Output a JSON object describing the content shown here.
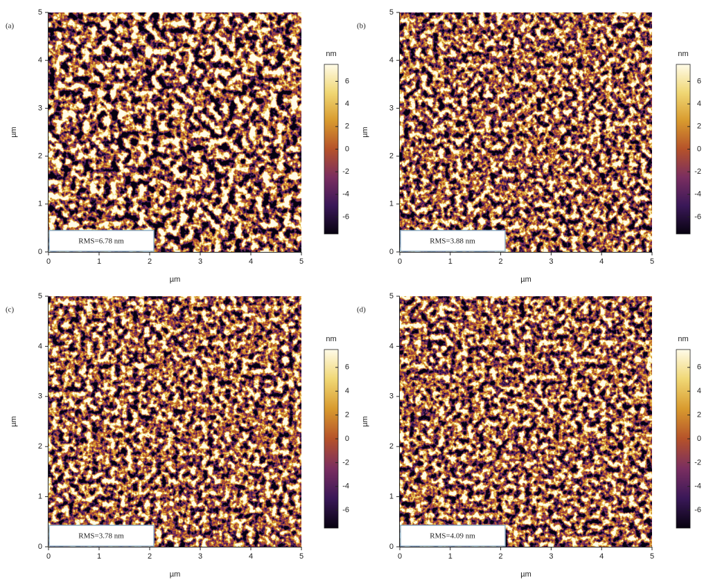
{
  "chart_data": [
    {
      "type": "image",
      "panel_label": "(a)",
      "annotation": "RMS=6.78 nm",
      "xlabel": "µm",
      "ylabel": "µm",
      "colorbar_label": "nm",
      "xlim": [
        0,
        5
      ],
      "ylim": [
        0,
        5
      ],
      "xticks": [
        0,
        1,
        2,
        3,
        4,
        5
      ],
      "yticks": [
        0,
        1,
        2,
        3,
        4,
        5
      ],
      "clim": [
        -7.5,
        7.5
      ],
      "cticks": [
        -6,
        -4,
        -2,
        0,
        2,
        4,
        6
      ],
      "colormap": [
        "#07020f",
        "#3a1858",
        "#7a2e60",
        "#b5522a",
        "#d89a2e",
        "#f0d774",
        "#fffbe8"
      ]
    },
    {
      "type": "image",
      "panel_label": "(b)",
      "annotation": "RMS=3.88 nm",
      "xlabel": "µm",
      "ylabel": "µm",
      "colorbar_label": "nm",
      "xlim": [
        0,
        5
      ],
      "ylim": [
        0,
        5
      ],
      "xticks": [
        0,
        1,
        2,
        3,
        4,
        5
      ],
      "yticks": [
        0,
        1,
        2,
        3,
        4,
        5
      ],
      "clim": [
        -7.5,
        7.5
      ],
      "cticks": [
        -6,
        -4,
        -2,
        0,
        2,
        4,
        6
      ],
      "colormap": [
        "#07020f",
        "#3a1858",
        "#7a2e60",
        "#b5522a",
        "#d89a2e",
        "#f0d774",
        "#fffbe8"
      ]
    },
    {
      "type": "image",
      "panel_label": "(c)",
      "annotation": "RMS=3.78 nm",
      "xlabel": "µm",
      "ylabel": "µm",
      "colorbar_label": "nm",
      "xlim": [
        0,
        5
      ],
      "ylim": [
        0,
        5
      ],
      "xticks": [
        0,
        1,
        2,
        3,
        4,
        5
      ],
      "yticks": [
        0,
        1,
        2,
        3,
        4,
        5
      ],
      "clim": [
        -7.5,
        7.5
      ],
      "cticks": [
        -6,
        -4,
        -2,
        0,
        2,
        4,
        6
      ],
      "colormap": [
        "#07020f",
        "#3a1858",
        "#7a2e60",
        "#b5522a",
        "#d89a2e",
        "#f0d774",
        "#fffbe8"
      ]
    },
    {
      "type": "image",
      "panel_label": "(d)",
      "annotation": "RMS=4.09 nm",
      "xlabel": "µm",
      "ylabel": "µm",
      "colorbar_label": "nm",
      "xlim": [
        0,
        5
      ],
      "ylim": [
        0,
        5
      ],
      "xticks": [
        0,
        1,
        2,
        3,
        4,
        5
      ],
      "yticks": [
        0,
        1,
        2,
        3,
        4,
        5
      ],
      "clim": [
        -7.5,
        7.5
      ],
      "cticks": [
        -6,
        -4,
        -2,
        0,
        2,
        4,
        6
      ],
      "colormap": [
        "#07020f",
        "#3a1858",
        "#7a2e60",
        "#b5522a",
        "#d89a2e",
        "#f0d774",
        "#fffbe8"
      ]
    }
  ]
}
